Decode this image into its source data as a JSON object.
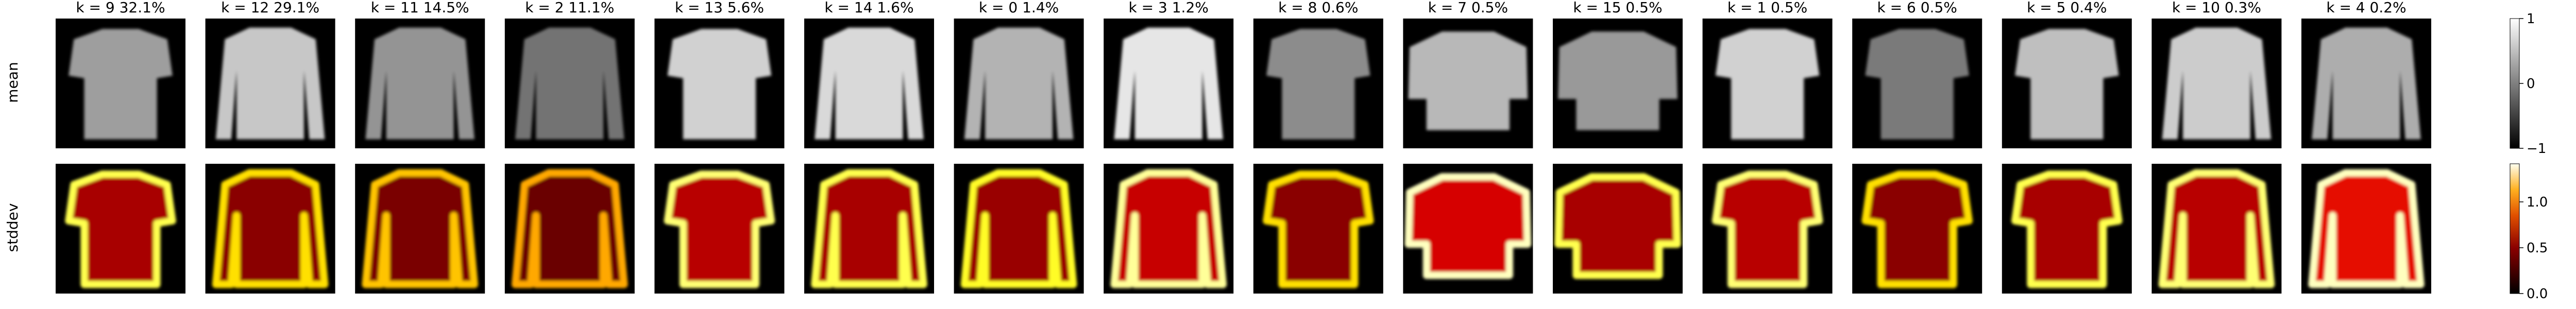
{
  "figure": {
    "row_labels": {
      "mean": "mean",
      "stddev": "stddev"
    },
    "panels": [
      {
        "title": "k = 9  32.1%",
        "shape": "tee",
        "mean_level": 0.62,
        "std_level": 0.55
      },
      {
        "title": "k = 12  29.1%",
        "shape": "sweater",
        "mean_level": 0.78,
        "std_level": 0.45
      },
      {
        "title": "k = 11  14.5%",
        "shape": "sweater",
        "mean_level": 0.58,
        "std_level": 0.4
      },
      {
        "title": "k = 2  11.1%",
        "shape": "sweater",
        "mean_level": 0.45,
        "std_level": 0.35
      },
      {
        "title": "k = 13   5.6%",
        "shape": "tee",
        "mean_level": 0.82,
        "std_level": 0.6
      },
      {
        "title": "k = 14   1.6%",
        "shape": "sweater",
        "mean_level": 0.85,
        "std_level": 0.55
      },
      {
        "title": "k = 0   1.4%",
        "shape": "sweater",
        "mean_level": 0.7,
        "std_level": 0.5
      },
      {
        "title": "k = 3   1.2%",
        "shape": "sweater",
        "mean_level": 0.9,
        "std_level": 0.65
      },
      {
        "title": "k = 8   0.6%",
        "shape": "tee",
        "mean_level": 0.55,
        "std_level": 0.45
      },
      {
        "title": "k = 7   0.5%",
        "shape": "wide",
        "mean_level": 0.72,
        "std_level": 0.7
      },
      {
        "title": "k = 15   0.5%",
        "shape": "wide",
        "mean_level": 0.6,
        "std_level": 0.55
      },
      {
        "title": "k = 1   0.5%",
        "shape": "tee",
        "mean_level": 0.82,
        "std_level": 0.6
      },
      {
        "title": "k = 6   0.5%",
        "shape": "tee",
        "mean_level": 0.48,
        "std_level": 0.45
      },
      {
        "title": "k = 5   0.4%",
        "shape": "tee",
        "mean_level": 0.75,
        "std_level": 0.55
      },
      {
        "title": "k = 10   0.3%",
        "shape": "sweater",
        "mean_level": 0.8,
        "std_level": 0.6
      },
      {
        "title": "k = 4   0.2%",
        "shape": "sweater",
        "mean_level": 0.68,
        "std_level": 0.75
      }
    ],
    "colorbars": [
      {
        "row": "mean",
        "colormap": "gray",
        "ticks": [
          "1",
          "0",
          "−1"
        ]
      },
      {
        "row": "stddev",
        "colormap": "afmhot",
        "ticks": [
          "1.0",
          "0.5",
          "0.0"
        ]
      }
    ]
  }
}
